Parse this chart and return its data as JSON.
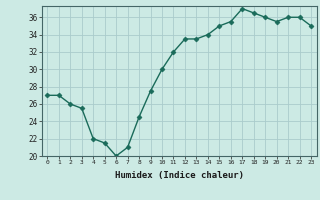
{
  "x": [
    0,
    1,
    2,
    3,
    4,
    5,
    6,
    7,
    8,
    9,
    10,
    11,
    12,
    13,
    14,
    15,
    16,
    17,
    18,
    19,
    20,
    21,
    22,
    23
  ],
  "y": [
    27,
    27,
    26,
    25.5,
    22,
    21.5,
    20,
    21,
    24.5,
    27.5,
    30,
    32,
    33.5,
    33.5,
    34,
    35,
    35.5,
    37,
    36.5,
    36,
    35.5,
    36,
    36,
    35
  ],
  "line_color": "#1a6b5a",
  "marker_color": "#1a6b5a",
  "bg_color": "#cceae4",
  "grid_color": "#aacccc",
  "xlabel": "Humidex (Indice chaleur)",
  "ylim": [
    20,
    37
  ],
  "xlim": [
    -0.5,
    23.5
  ],
  "yticks": [
    20,
    22,
    24,
    26,
    28,
    30,
    32,
    34,
    36
  ],
  "xticks": [
    0,
    1,
    2,
    3,
    4,
    5,
    6,
    7,
    8,
    9,
    10,
    11,
    12,
    13,
    14,
    15,
    16,
    17,
    18,
    19,
    20,
    21,
    22,
    23
  ]
}
